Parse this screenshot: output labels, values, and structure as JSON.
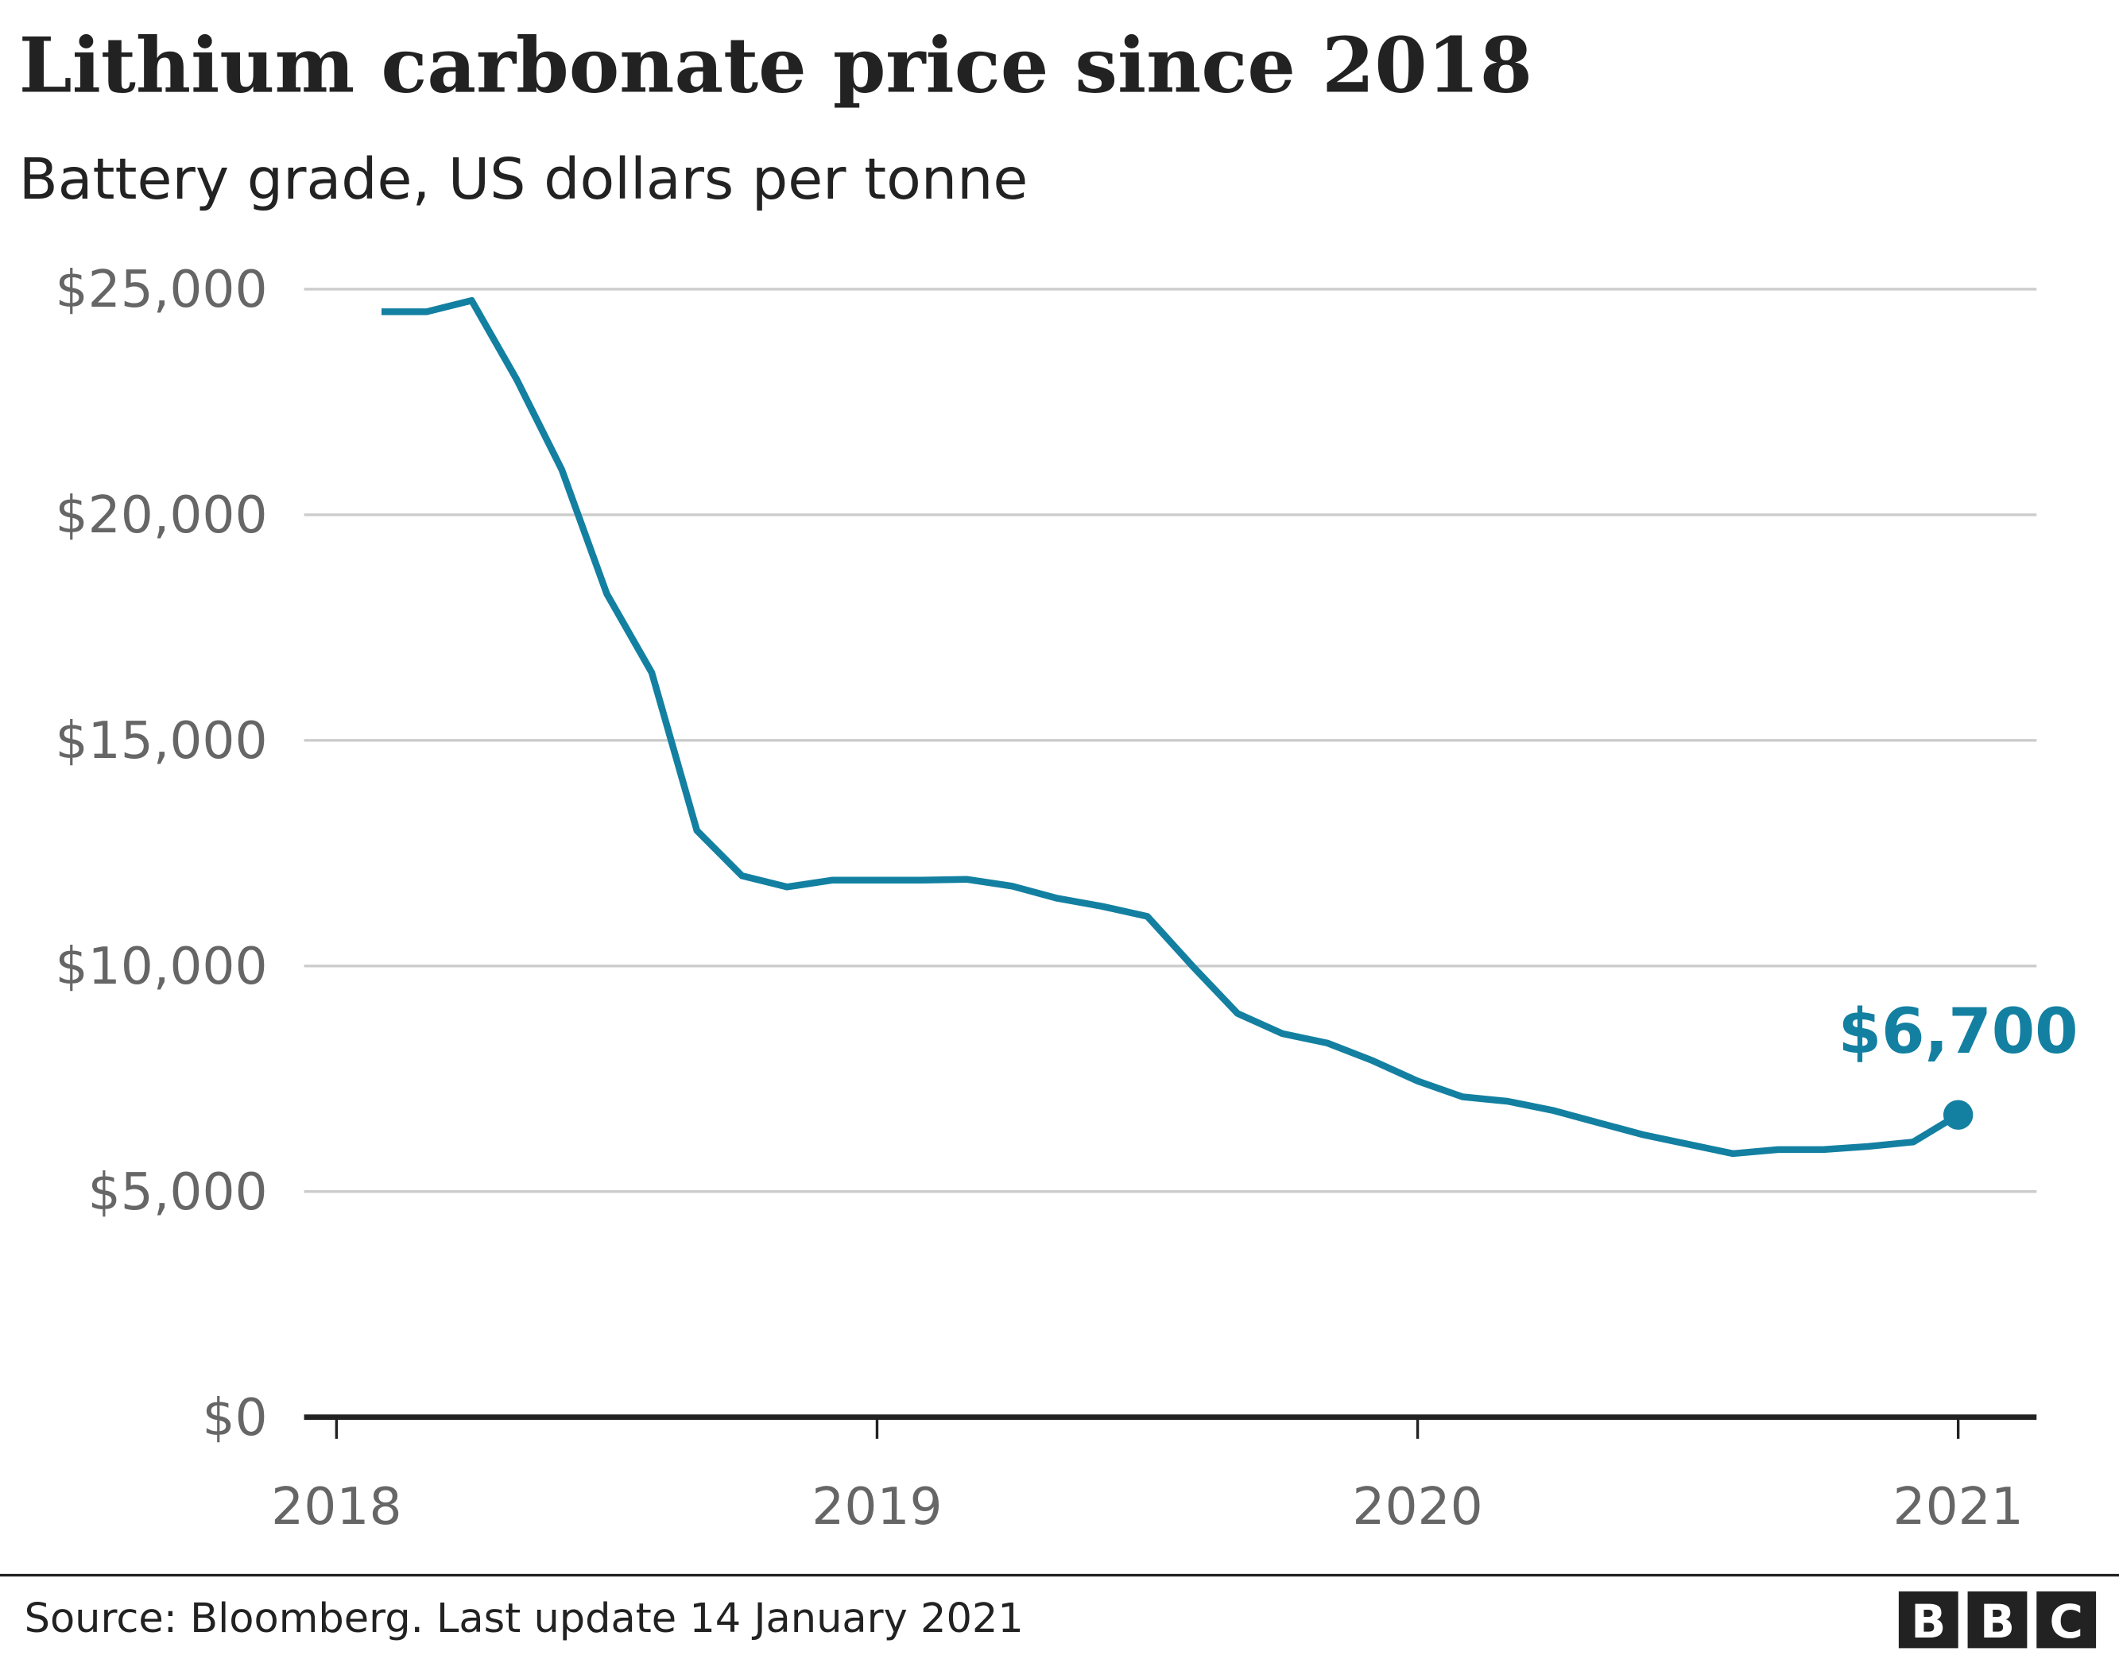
{
  "chart_data": {
    "type": "line",
    "title": "Lithium carbonate price since 2018",
    "subtitle": "Battery grade, US dollars per tonne",
    "xlabel": "",
    "ylabel": "",
    "ylim": [
      0,
      25000
    ],
    "yticks": [
      0,
      5000,
      10000,
      15000,
      20000,
      25000
    ],
    "ytick_labels": [
      "$0",
      "$5,000",
      "$10,000",
      "$15,000",
      "$20,000",
      "$25,000"
    ],
    "xticks": [
      "2018",
      "2019",
      "2020",
      "2021"
    ],
    "grid": true,
    "line_color": "#1380A1",
    "x": [
      "2018-02",
      "2018-03",
      "2018-04",
      "2018-05",
      "2018-06",
      "2018-07",
      "2018-08",
      "2018-09",
      "2018-10",
      "2018-11",
      "2018-12",
      "2019-01",
      "2019-02",
      "2019-03",
      "2019-04",
      "2019-05",
      "2019-06",
      "2019-07",
      "2019-08",
      "2019-09",
      "2019-10",
      "2019-11",
      "2019-12",
      "2020-01",
      "2020-02",
      "2020-03",
      "2020-04",
      "2020-05",
      "2020-06",
      "2020-07",
      "2020-08",
      "2020-09",
      "2020-10",
      "2020-11",
      "2020-12",
      "2021-01"
    ],
    "values": [
      24500,
      24500,
      24750,
      23000,
      21000,
      18250,
      16500,
      13000,
      12000,
      11750,
      11900,
      11900,
      11900,
      11920,
      11770,
      11500,
      11320,
      11100,
      10000,
      8950,
      8500,
      8290,
      7900,
      7450,
      7100,
      7000,
      6800,
      6530,
      6260,
      6050,
      5840,
      5930,
      5930,
      6000,
      6100,
      6700
    ],
    "annotation": {
      "label": "$6,700",
      "x": "2021-01",
      "value": 6700
    }
  },
  "footer": {
    "source": "Source: Bloomberg. Last update 14 January 2021",
    "logo": "BBC"
  }
}
